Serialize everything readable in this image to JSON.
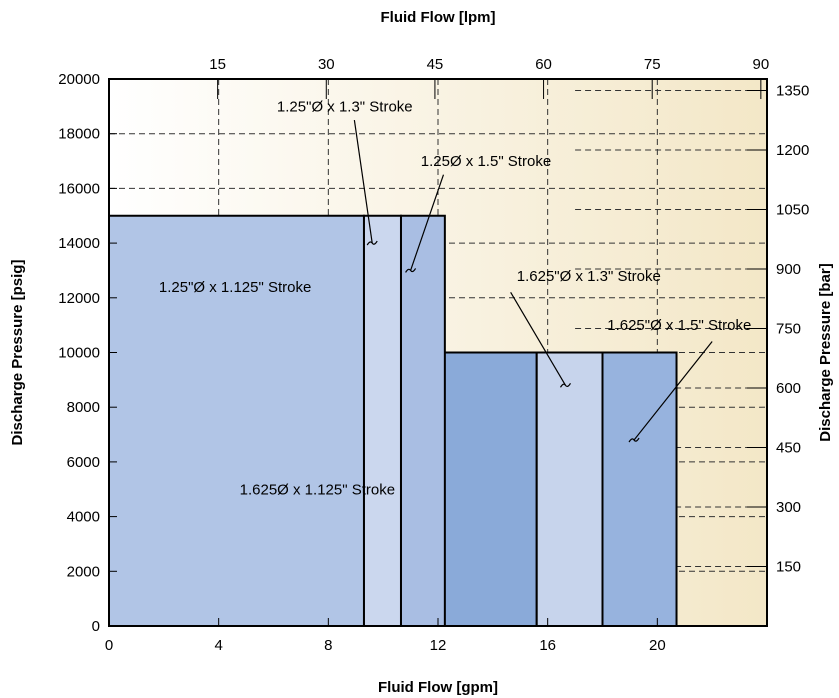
{
  "chart_data": {
    "type": "bar",
    "subtype": "pressure-flow operating regions",
    "x_bottom": {
      "label": "Fluid Flow [gpm]",
      "range": [
        0,
        24
      ],
      "ticks": [
        0,
        4,
        8,
        12,
        16,
        20
      ],
      "tick_labels": [
        "0",
        "4",
        "8",
        "12",
        "16",
        "20"
      ]
    },
    "x_top": {
      "label": "Fluid Flow [lpm]",
      "ticks": [
        15,
        30,
        45,
        60,
        75,
        90
      ],
      "tick_labels": [
        "15",
        "30",
        "45",
        "60",
        "75",
        "90"
      ]
    },
    "y_left": {
      "label": "Discharge Pressure [psig]",
      "range": [
        0,
        20000
      ],
      "ticks": [
        0,
        2000,
        4000,
        6000,
        8000,
        10000,
        12000,
        14000,
        16000,
        18000,
        20000
      ],
      "tick_labels": [
        "0",
        "2000",
        "4000",
        "6000",
        "8000",
        "10000",
        "12000",
        "14000",
        "16000",
        "18000",
        "20000"
      ]
    },
    "y_right": {
      "label": "Discharge Pressure [bar]",
      "ticks": [
        150,
        300,
        450,
        600,
        750,
        900,
        1050,
        1200,
        1350
      ],
      "tick_labels": [
        "150",
        "300",
        "450",
        "600",
        "750",
        "900",
        "1050",
        "1200",
        "1350"
      ]
    },
    "grid": true,
    "background_gradient": [
      "#ffffff",
      "#f3e7c7"
    ],
    "regions": [
      {
        "name": "1.625Ø x 1.125\" Stroke",
        "x_start": 0,
        "x_end": 15.6,
        "pressure_max": 10000,
        "color": "#8aaad9"
      },
      {
        "name": "1.625\"Ø x 1.3\" Stroke",
        "x_start": 15.6,
        "x_end": 18.0,
        "pressure_max": 10000,
        "color": "#c7d4ec"
      },
      {
        "name": "1.625\"Ø x 1.5\" Stroke",
        "x_start": 18.0,
        "x_end": 20.7,
        "pressure_max": 10000,
        "color": "#97b3de"
      },
      {
        "name": "1.25\"Ø x 1.125\" Stroke",
        "x_start": 0,
        "x_end": 9.3,
        "pressure_max": 15000,
        "color": "#b1c5e6"
      },
      {
        "name": "1.25\"Ø x 1.3\" Stroke",
        "x_start": 9.3,
        "x_end": 10.65,
        "pressure_max": 15000,
        "color": "#cbd7ee"
      },
      {
        "name": "1.25Ø x 1.5\" Stroke",
        "x_start": 10.65,
        "x_end": 12.25,
        "pressure_max": 15000,
        "color": "#a9bee3"
      }
    ],
    "annotations": [
      {
        "text": "1.625Ø x 1.125\" Stroke",
        "x": 7.6,
        "y": 5000,
        "leader": false
      },
      {
        "text": "1.25\"Ø x 1.125\" Stroke",
        "x": 4.6,
        "y": 12400,
        "leader": false
      },
      {
        "text": "1.25\"Ø x 1.3\" Stroke",
        "x": 8.6,
        "y": 19000,
        "leader": true,
        "leader_from": [
          8.95,
          18500
        ],
        "leader_to": [
          9.6,
          14000
        ]
      },
      {
        "text": "1.25Ø x 1.5\" Stroke",
        "x": 13.75,
        "y": 17000,
        "leader": true,
        "leader_from": [
          12.2,
          16500
        ],
        "leader_to": [
          11.0,
          13000
        ]
      },
      {
        "text": "1.625\"Ø x 1.3\" Stroke",
        "x": 17.5,
        "y": 12800,
        "leader": true,
        "leader_from": [
          14.65,
          12200
        ],
        "leader_to": [
          16.65,
          8800
        ]
      },
      {
        "text": "1.625\"Ø x 1.5\" Stroke",
        "x": 20.8,
        "y": 11000,
        "leader": true,
        "leader_from": [
          22.0,
          10400
        ],
        "leader_to": [
          19.15,
          6800
        ]
      }
    ]
  }
}
